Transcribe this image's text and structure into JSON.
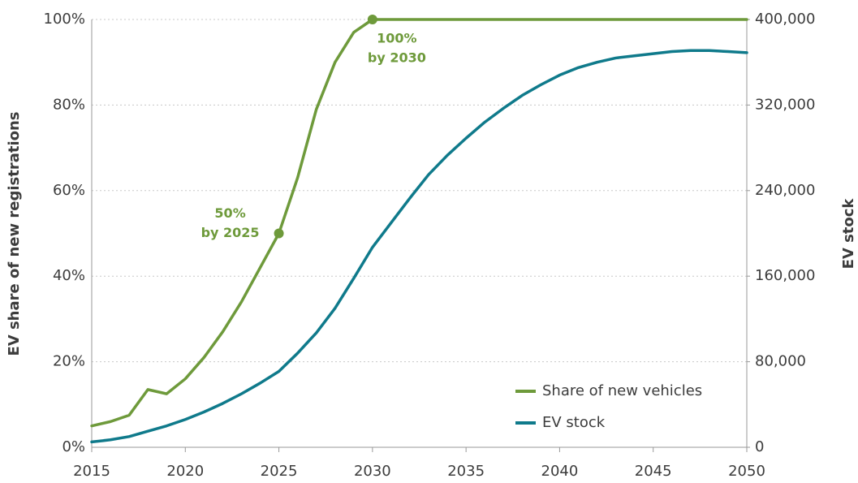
{
  "chart_data": {
    "type": "line",
    "ylabel": "EV share of new registrations",
    "y2label": "EV stock",
    "x": [
      2015,
      2016,
      2017,
      2018,
      2019,
      2020,
      2021,
      2022,
      2023,
      2024,
      2025,
      2026,
      2027,
      2028,
      2029,
      2030,
      2031,
      2032,
      2033,
      2034,
      2035,
      2036,
      2037,
      2038,
      2039,
      2040,
      2041,
      2042,
      2043,
      2044,
      2045,
      2046,
      2047,
      2048,
      2049,
      2050
    ],
    "series": [
      {
        "name": "Share of new vehicles",
        "color": "#6e9a3b",
        "values": [
          5,
          6,
          7.5,
          13.5,
          12.5,
          16,
          21,
          27,
          34,
          42,
          50,
          63,
          79,
          90,
          97,
          100,
          100,
          100,
          100,
          100,
          100,
          100,
          100,
          100,
          100,
          100,
          100,
          100,
          100,
          100,
          100,
          100,
          100,
          100,
          100,
          100
        ]
      },
      {
        "name": "EV stock",
        "color": "#0f7a8b",
        "axis": "y2",
        "values": [
          5000,
          7000,
          10000,
          15000,
          20000,
          26000,
          33000,
          41000,
          50000,
          60000,
          71000,
          88000,
          107000,
          130000,
          158000,
          187000,
          210000,
          233000,
          255000,
          273000,
          289000,
          304000,
          317000,
          329000,
          339000,
          348000,
          355000,
          360000,
          364000,
          366000,
          368000,
          370000,
          371000,
          371000,
          370000,
          369000
        ]
      }
    ],
    "xlim": [
      2015,
      2050
    ],
    "xticks": [
      2015,
      2020,
      2025,
      2030,
      2035,
      2040,
      2045,
      2050
    ],
    "ylim": [
      0,
      100
    ],
    "yticks": [
      {
        "value": 0,
        "label": "0%"
      },
      {
        "value": 20,
        "label": "20%"
      },
      {
        "value": 40,
        "label": "40%"
      },
      {
        "value": 60,
        "label": "60%"
      },
      {
        "value": 80,
        "label": "80%"
      },
      {
        "value": 100,
        "label": "100%"
      }
    ],
    "y2lim": [
      0,
      400000
    ],
    "y2ticks": [
      0,
      {
        "value": 80000,
        "label": "80,000"
      },
      {
        "value": 160000,
        "label": "160,000"
      },
      {
        "value": 240000,
        "label": "240,000"
      },
      {
        "value": 320000,
        "label": "320,000"
      },
      {
        "value": 400000,
        "label": "400,000"
      }
    ],
    "grid": true,
    "legend": "lower right",
    "annotations": [
      {
        "x": 2025,
        "y": 50,
        "text": [
          "50%",
          "by 2025"
        ]
      },
      {
        "x": 2030,
        "y": 100,
        "text": [
          "100%",
          "by 2030"
        ]
      }
    ]
  }
}
